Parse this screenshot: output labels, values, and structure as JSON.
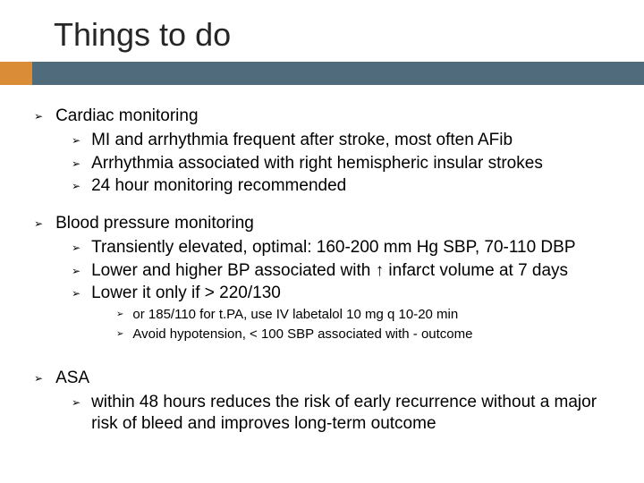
{
  "colors": {
    "accent": "#da8d36",
    "bar": "#4f6b7c",
    "title": "#262626",
    "text": "#000000",
    "bg": "#ffffff"
  },
  "title": "Things to do",
  "bullet_glyph": "➢",
  "sections": {
    "s1": {
      "head": "Cardiac  monitoring",
      "items": [
        "MI and arrhythmia frequent after stroke, most often AFib",
        "Arrhythmia associated with right hemispheric insular strokes",
        "24 hour monitoring recommended"
      ]
    },
    "s2": {
      "head": "Blood pressure monitoring",
      "items": [
        "Transiently elevated, optimal: 160-200 mm Hg SBP, 70-110 DBP",
        "Lower and higher BP associated with ↑ infarct volume at 7 days",
        "Lower it only if > 220/130"
      ],
      "sub": [
        "or 185/110 for t.PA, use IV labetalol 10 mg q 10-20 min",
        "Avoid hypotension, < 100 SBP associated with - outcome"
      ]
    },
    "s3": {
      "head": "ASA",
      "items": [
        " within 48 hours reduces the risk of early recurrence without a major risk of bleed and improves long-term outcome"
      ]
    }
  }
}
